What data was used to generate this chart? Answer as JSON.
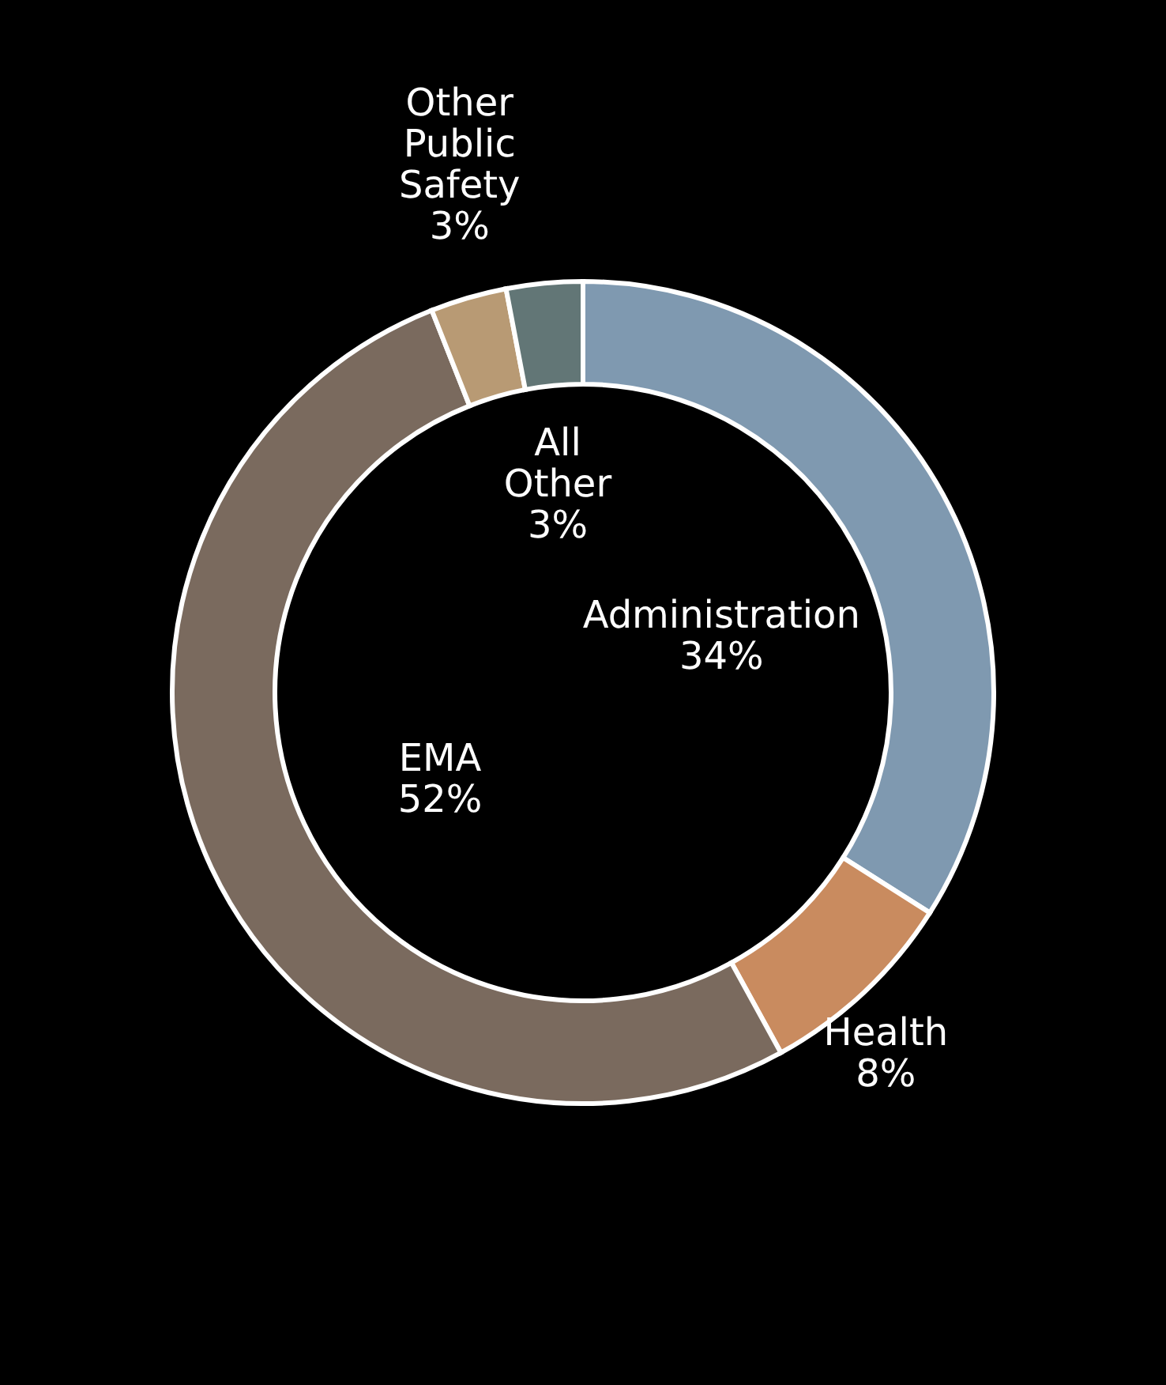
{
  "chart_data": {
    "type": "donut",
    "categories": [
      "Administration",
      "Health",
      "EMA",
      "Other Public Safety",
      "All Other"
    ],
    "values": [
      34,
      8,
      52,
      3,
      3
    ],
    "value_labels": [
      "34%",
      "8%",
      "52%",
      "3%",
      "3%"
    ],
    "colors": [
      "#7f99b0",
      "#c98b5f",
      "#7a6a5e",
      "#b89a74",
      "#627676"
    ]
  }
}
